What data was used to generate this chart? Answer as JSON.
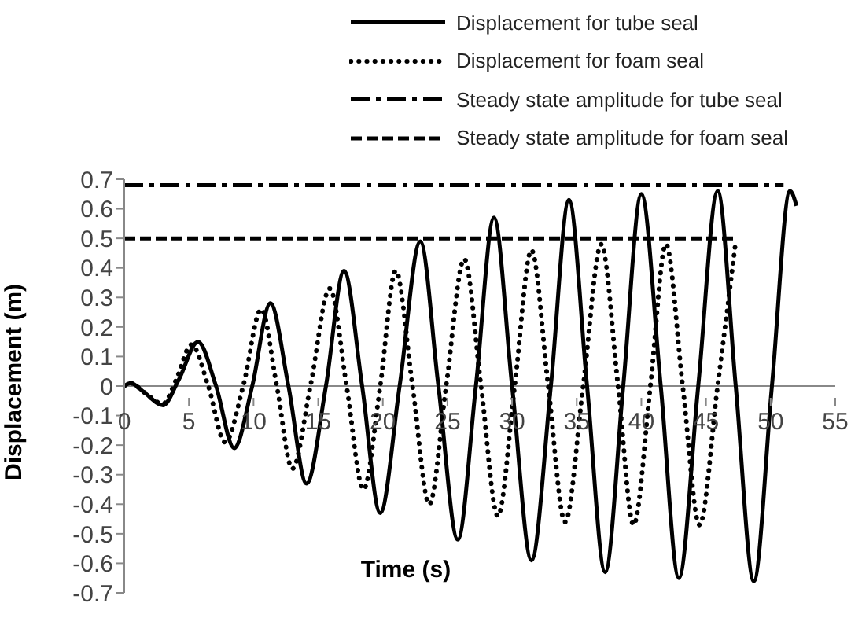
{
  "chart_data": {
    "type": "line",
    "xlabel": "Time (s)",
    "ylabel": "Displacement (m)",
    "xlim": [
      0,
      55
    ],
    "xticks": [
      0,
      5,
      10,
      15,
      20,
      25,
      30,
      35,
      40,
      45,
      50,
      55
    ],
    "ylim": [
      -0.7,
      0.7
    ],
    "yticks": [
      -0.7,
      -0.6,
      -0.5,
      -0.4,
      -0.3,
      -0.2,
      -0.1,
      0,
      0.1,
      0.2,
      0.3,
      0.4,
      0.5,
      0.6,
      0.7
    ],
    "grid": false,
    "legend": "top",
    "series": [
      {
        "name": "Displacement for tube seal",
        "color": "#000000",
        "line_style": "solid",
        "x": [
          0,
          0.5,
          1.5,
          3,
          4.2,
          5.7,
          7.1,
          8.5,
          9.9,
          11.3,
          12.7,
          14.1,
          15.6,
          17,
          18.4,
          19.8,
          21.3,
          22.9,
          24.3,
          25.8,
          27.2,
          28.6,
          30,
          31.5,
          33,
          34.4,
          35.8,
          37.2,
          38.6,
          40,
          41.5,
          42.9,
          44.4,
          45.9,
          47.3,
          48.7,
          50.1,
          51.5,
          52
        ],
        "values": [
          0,
          0.01,
          -0.02,
          -0.065,
          0.02,
          0.15,
          0,
          -0.21,
          0,
          0.28,
          0,
          -0.33,
          0,
          0.39,
          0,
          -0.43,
          0,
          0.49,
          0,
          -0.52,
          0,
          0.57,
          0,
          -0.59,
          0,
          0.63,
          0,
          -0.63,
          0,
          0.65,
          0,
          -0.65,
          0,
          0.66,
          0,
          -0.66,
          0,
          0.66,
          0.61
        ]
      },
      {
        "name": "Displacement for foam seal",
        "color": "#000000",
        "line_style": "dotted",
        "x": [
          0,
          0.5,
          1.5,
          3,
          4,
          5.2,
          6.5,
          7.8,
          9.2,
          10.6,
          11.8,
          13,
          14.4,
          15.9,
          17.2,
          18.5,
          19.8,
          21,
          22.3,
          23.6,
          24.9,
          26.3,
          27.6,
          28.9,
          30.2,
          31.5,
          32.8,
          34.1,
          35.5,
          36.9,
          38.2,
          39.4,
          40.7,
          41.9,
          43.2,
          44.5,
          45.9,
          47.3
        ],
        "values": [
          0,
          0.01,
          -0.02,
          -0.06,
          0.02,
          0.14,
          0,
          -0.19,
          0,
          0.26,
          0,
          -0.28,
          0,
          0.33,
          0,
          -0.35,
          0,
          0.39,
          0,
          -0.4,
          0,
          0.43,
          0,
          -0.44,
          0,
          0.46,
          0,
          -0.46,
          0,
          0.48,
          0,
          -0.47,
          0,
          0.48,
          0,
          -0.47,
          0,
          0.49
        ]
      },
      {
        "name": "Steady state amplitude for tube seal",
        "color": "#000000",
        "line_style": "dashdot",
        "x": [
          0,
          51
        ],
        "values": [
          0.68,
          0.68
        ]
      },
      {
        "name": "Steady state amplitude for foam seal",
        "color": "#000000",
        "line_style": "dashed",
        "x": [
          0,
          47.3
        ],
        "values": [
          0.5,
          0.5
        ]
      }
    ]
  }
}
